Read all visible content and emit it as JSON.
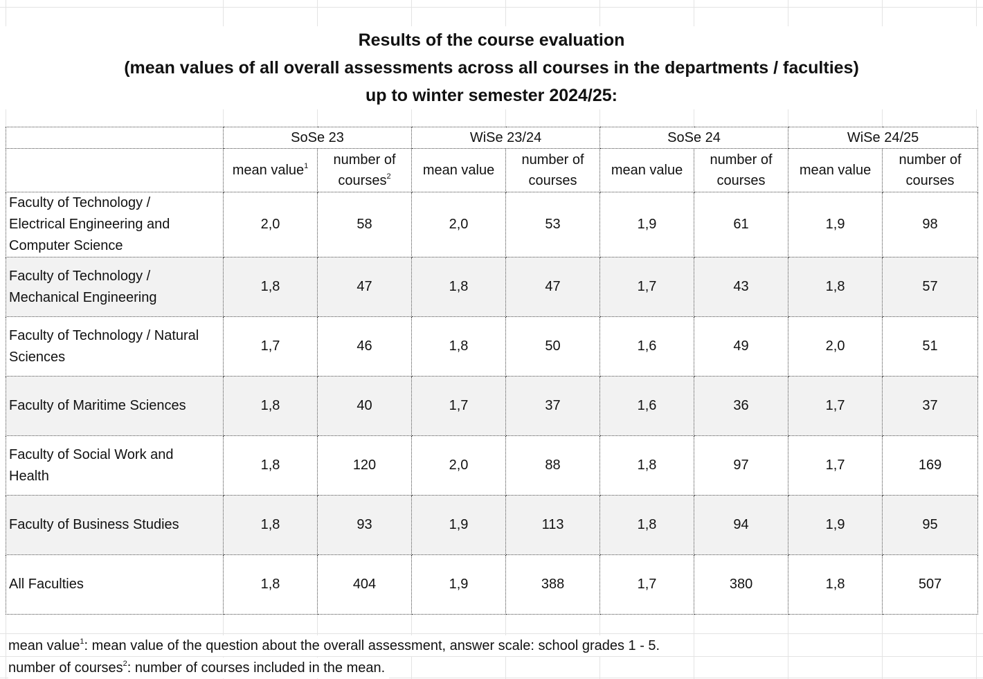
{
  "title": {
    "line1": "Results of the course evaluation",
    "line2": "(mean values of all overall assessments across all courses in the departments / faculties)",
    "line3": "up to winter semester 2024/25:"
  },
  "table": {
    "semesters": [
      "SoSe 23",
      "WiSe 23/24",
      "SoSe 24",
      "WiSe 24/25"
    ],
    "sub_headers": {
      "mean_value": "mean value",
      "number_of": "number of",
      "courses": "courses",
      "sup1": "1",
      "sup2": "2"
    },
    "rows": [
      {
        "label_lines": [
          "Faculty of Technology /",
          "Electrical Engineering and",
          "Computer Science"
        ],
        "values": [
          "2,0",
          "58",
          "2,0",
          "53",
          "1,9",
          "61",
          "1,9",
          "98"
        ]
      },
      {
        "label_lines": [
          "Faculty of Technology /",
          "Mechanical Engineering"
        ],
        "values": [
          "1,8",
          "47",
          "1,8",
          "47",
          "1,7",
          "43",
          "1,8",
          "57"
        ]
      },
      {
        "label_lines": [
          "Faculty of Technology / Natural",
          "Sciences"
        ],
        "values": [
          "1,7",
          "46",
          "1,8",
          "50",
          "1,6",
          "49",
          "2,0",
          "51"
        ]
      },
      {
        "label_lines": [
          "Faculty of Maritime Sciences"
        ],
        "values": [
          "1,8",
          "40",
          "1,7",
          "37",
          "1,6",
          "36",
          "1,7",
          "37"
        ]
      },
      {
        "label_lines": [
          "Faculty of Social Work and",
          "Health"
        ],
        "values": [
          "1,8",
          "120",
          "2,0",
          "88",
          "1,8",
          "97",
          "1,7",
          "169"
        ]
      },
      {
        "label_lines": [
          "Faculty of Business Studies"
        ],
        "values": [
          "1,8",
          "93",
          "1,9",
          "113",
          "1,8",
          "94",
          "1,9",
          "95"
        ]
      }
    ],
    "total": {
      "label": "All Faculties",
      "values": [
        "1,8",
        "404",
        "1,9",
        "388",
        "1,7",
        "380",
        "1,8",
        "507"
      ]
    }
  },
  "footnotes": {
    "f1_term": "mean value",
    "f1_sup": "1",
    "f1_text": ": mean value of the question about the overall assessment, answer scale: school grades 1 - 5.",
    "f2_term": "number of courses",
    "f2_sup": "2",
    "f2_text": ": number of courses included in the mean."
  }
}
